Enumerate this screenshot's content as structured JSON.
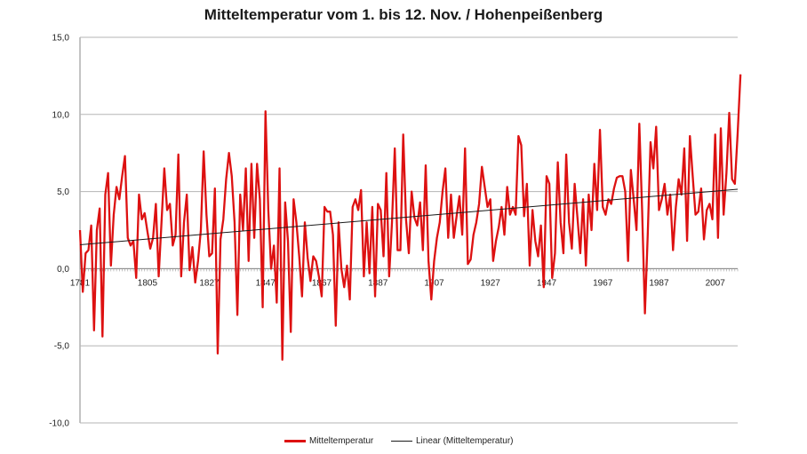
{
  "chart_data": {
    "type": "line",
    "title": "Mitteltemperatur vom 1. bis 12. Nov. / Hohenpeißenberg",
    "xlabel": "",
    "ylabel": "",
    "xlim": [
      1781,
      2015
    ],
    "ylim": [
      -10,
      15
    ],
    "y_ticks": [
      "-10,0",
      "-5,0",
      "0,0",
      "5,0",
      "10,0",
      "15,0"
    ],
    "x_ticks": [
      1781,
      1805,
      1827,
      1847,
      1867,
      1887,
      1907,
      1927,
      1947,
      1967,
      1987,
      2007
    ],
    "grid": "horizontal",
    "legend_position": "bottom",
    "series": [
      {
        "name": "Mitteltemperatur",
        "color": "#dd1111",
        "x_start": 1781,
        "values": [
          2.5,
          -1.5,
          1.0,
          1.2,
          2.8,
          -4.0,
          2.5,
          3.9,
          -4.4,
          4.8,
          6.2,
          0.2,
          3.5,
          5.3,
          4.5,
          6.0,
          7.3,
          2.0,
          1.5,
          1.8,
          -0.6,
          4.8,
          3.2,
          3.6,
          2.4,
          1.3,
          2.0,
          4.2,
          -0.5,
          3.0,
          6.5,
          3.8,
          4.2,
          1.5,
          2.2,
          7.4,
          -0.5,
          3.0,
          4.8,
          -0.1,
          1.4,
          -0.9,
          0.5,
          2.5,
          7.6,
          3.5,
          0.8,
          1.0,
          5.2,
          -5.5,
          1.9,
          3.2,
          5.8,
          7.5,
          6.0,
          3.0,
          -3.0,
          4.8,
          2.5,
          6.5,
          0.5,
          6.8,
          2.0,
          6.8,
          4.5,
          -2.5,
          10.2,
          3.8,
          0.0,
          1.5,
          -2.2,
          6.5,
          -5.9,
          4.3,
          1.8,
          -4.1,
          4.5,
          3.0,
          0.8,
          -1.8,
          3.0,
          0.7,
          -0.8,
          0.8,
          0.5,
          -0.5,
          -1.8,
          4.0,
          3.7,
          3.7,
          2.2,
          -3.7,
          3.0,
          0.0,
          -1.2,
          0.2,
          -2.0,
          4.0,
          4.5,
          3.8,
          5.1,
          -0.5,
          3.0,
          -0.3,
          4.0,
          -1.8,
          4.2,
          3.8,
          0.8,
          6.2,
          -0.5,
          3.0,
          7.8,
          1.2,
          1.2,
          8.7,
          3.2,
          1.0,
          5.0,
          3.3,
          2.8,
          4.3,
          1.2,
          6.7,
          0.5,
          -2.0,
          0.5,
          2.0,
          3.0,
          5.0,
          6.5,
          2.0,
          4.8,
          2.0,
          3.4,
          4.7,
          2.2,
          7.8,
          0.3,
          0.6,
          2.2,
          3.0,
          4.2,
          6.6,
          5.3,
          4.0,
          4.5,
          0.5,
          1.8,
          2.7,
          4.0,
          2.2,
          5.3,
          3.5,
          4.0,
          3.5,
          8.6,
          8.0,
          3.4,
          5.5,
          0.2,
          3.8,
          1.8,
          0.8,
          2.8,
          -1.2,
          6.0,
          5.5,
          -0.6,
          1.0,
          6.9,
          3.0,
          1.0,
          7.4,
          3.0,
          1.3,
          5.5,
          3.3,
          1.0,
          4.5,
          0.2,
          4.8,
          2.5,
          6.8,
          3.8,
          9.0,
          4.0,
          3.5,
          4.5,
          4.2,
          5.2,
          5.9,
          6.0,
          6.0,
          5.0,
          0.5,
          6.4,
          4.5,
          2.5,
          9.4,
          3.8,
          -2.9,
          2.2,
          8.2,
          6.5,
          9.2,
          3.8,
          4.5,
          5.5,
          3.5,
          4.8,
          1.2,
          4.0,
          5.8,
          4.8,
          7.8,
          1.8,
          8.6,
          6.0,
          3.5,
          3.7,
          5.2,
          1.9,
          3.8,
          4.2,
          3.2,
          8.7,
          2.0,
          9.1,
          3.5,
          6.2,
          10.1,
          5.8,
          5.5,
          8.8,
          12.6
        ]
      },
      {
        "name": "Linear (Mitteltemperatur)",
        "color": "#1a1a1a",
        "type": "trend",
        "x": [
          1781,
          2015
        ],
        "values": [
          1.55,
          5.15
        ]
      }
    ]
  }
}
